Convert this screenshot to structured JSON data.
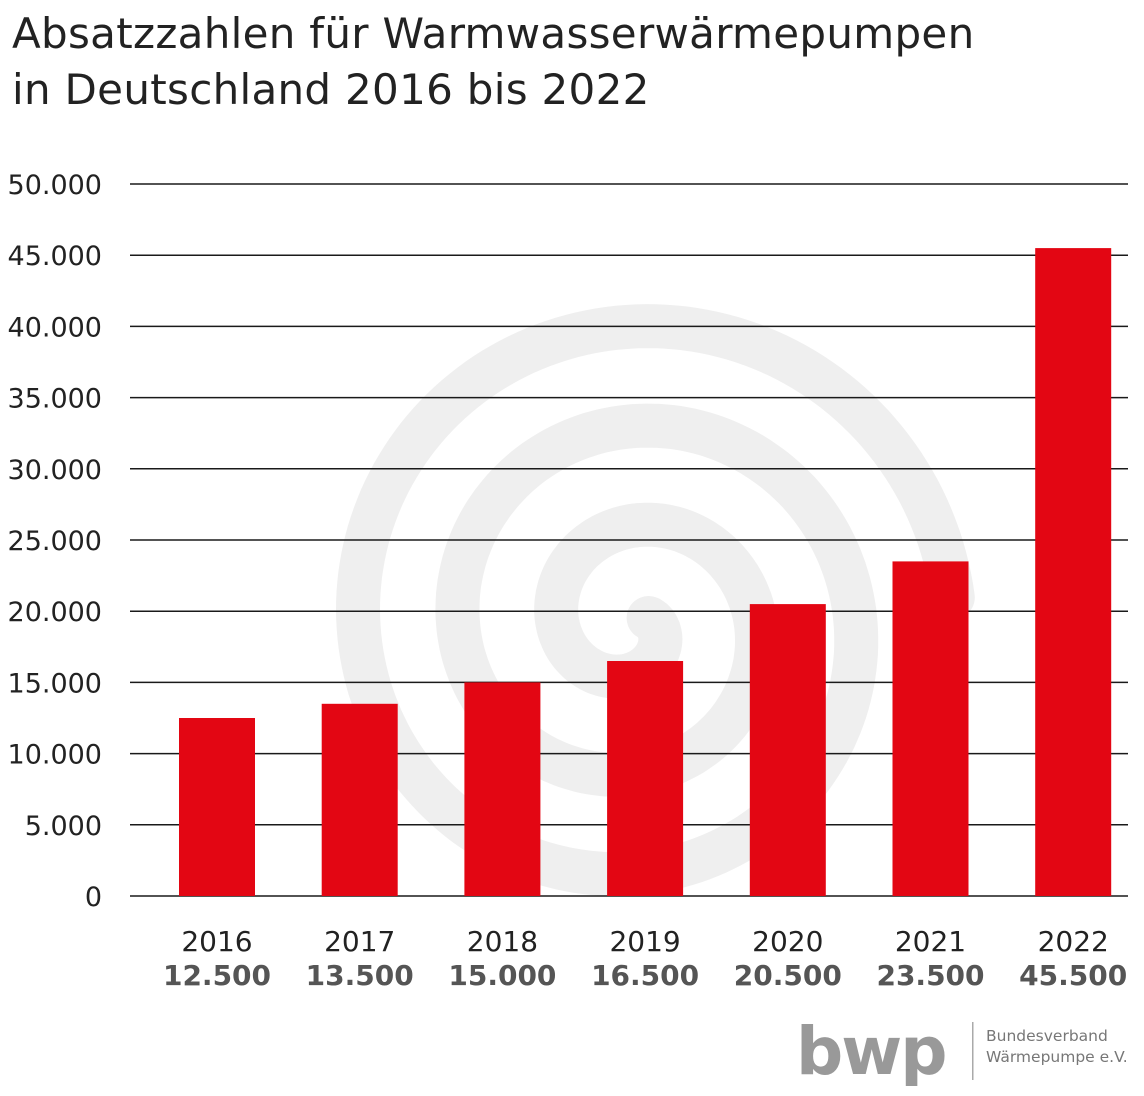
{
  "title": {
    "line1": "Absatzzahlen für Warmwasserwärmepumpen",
    "line2": "in Deutschland 2016 bis 2022"
  },
  "logo": {
    "mark": "bwp",
    "line1": "Bundesverband",
    "line2": "Wärmepumpe e.V."
  },
  "colors": {
    "bar": "#e30613",
    "grid": "#1a1a1a",
    "watermark": "#efefef",
    "text": "#222222",
    "value_label": "#555555",
    "logo": "#999999"
  },
  "chart_data": {
    "type": "bar",
    "title": "Absatzzahlen für Warmwasserwärmepumpen in Deutschland 2016 bis 2022",
    "xlabel": "",
    "ylabel": "",
    "ylim": [
      0,
      50000
    ],
    "yticks": [
      0,
      5000,
      10000,
      15000,
      20000,
      25000,
      30000,
      35000,
      40000,
      45000,
      50000
    ],
    "ytick_labels": [
      "0",
      "5.000",
      "10.000",
      "15.000",
      "20.000",
      "25.000",
      "30.000",
      "35.000",
      "40.000",
      "45.000",
      "50.000"
    ],
    "grid": true,
    "legend": "none",
    "categories": [
      "2016",
      "2017",
      "2018",
      "2019",
      "2020",
      "2021",
      "2022"
    ],
    "values": [
      12500,
      13500,
      15000,
      16500,
      20500,
      23500,
      45500
    ],
    "value_labels": [
      "12.500",
      "13.500",
      "15.000",
      "16.500",
      "20.500",
      "23.500",
      "45.500"
    ]
  }
}
